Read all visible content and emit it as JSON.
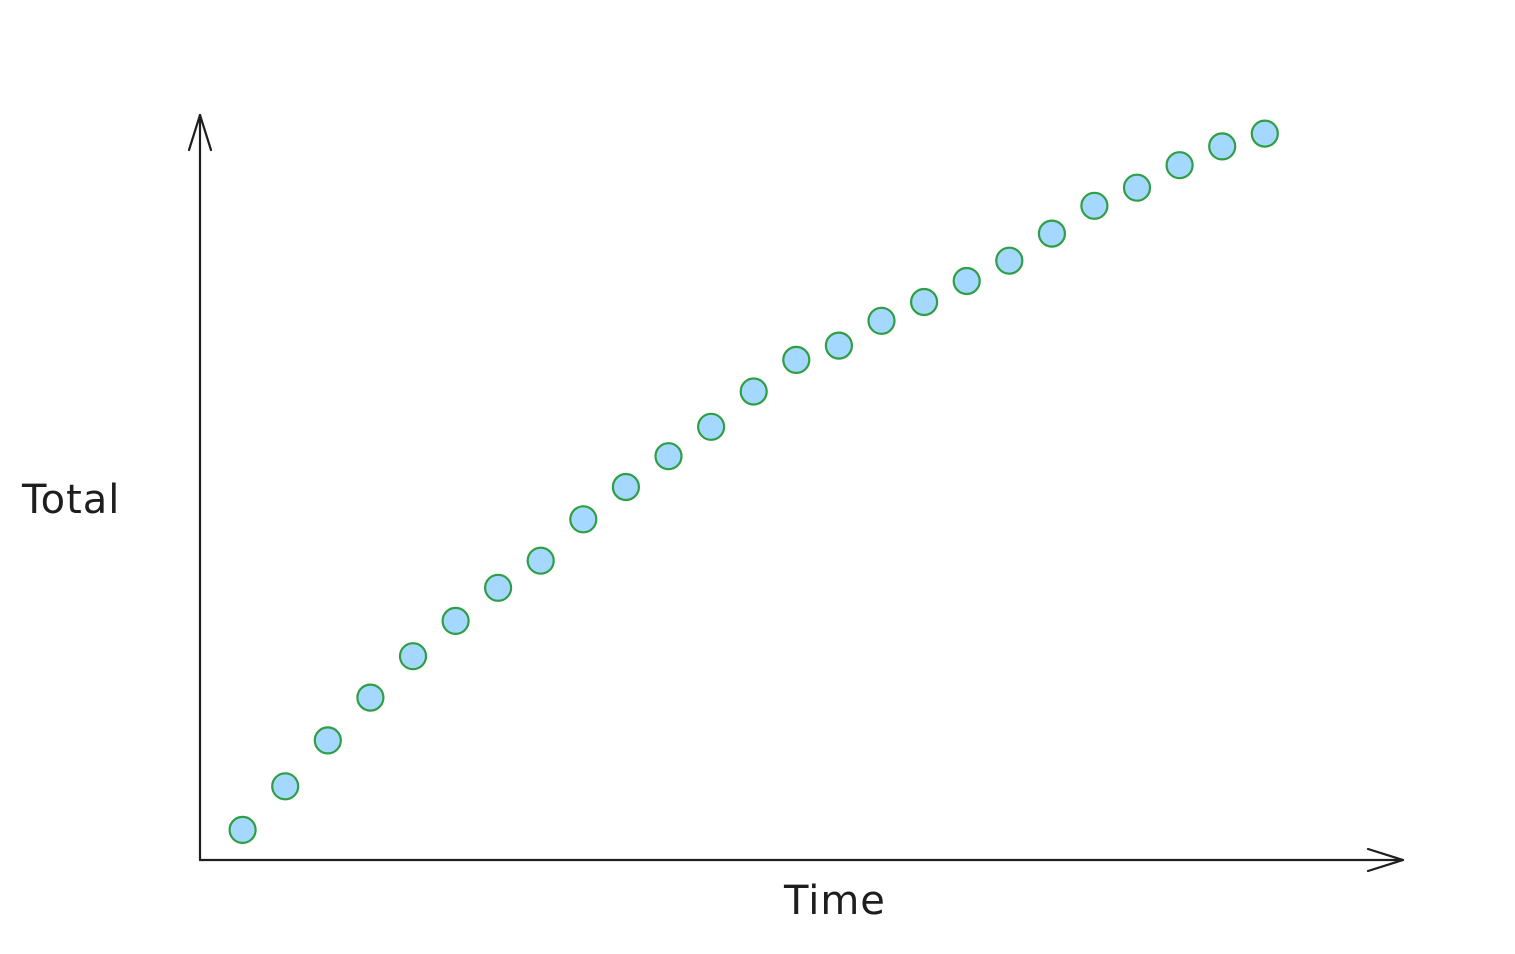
{
  "chart_data": {
    "type": "scatter",
    "title": "",
    "xlabel": "Time",
    "ylabel": "Total",
    "x": [
      1,
      2,
      3,
      4,
      5,
      6,
      7,
      8,
      9,
      10,
      11,
      12,
      13,
      14,
      15,
      16,
      17,
      18,
      19,
      20,
      21,
      22,
      23,
      24,
      25
    ],
    "y": [
      4.0,
      9.8,
      15.9,
      21.6,
      27.1,
      31.8,
      36.2,
      39.8,
      45.3,
      49.6,
      53.7,
      57.6,
      62.3,
      66.5,
      68.4,
      71.7,
      74.2,
      77.0,
      79.7,
      83.3,
      87.0,
      89.4,
      92.4,
      94.9,
      96.6
    ],
    "xlim": [
      0,
      27
    ],
    "ylim": [
      0,
      100
    ],
    "show_ticks": false,
    "grid": false,
    "legend": "none",
    "colors": {
      "point_fill": "#a5d8ff",
      "point_stroke": "#2f9e44",
      "axis": "#1e1e1e"
    }
  }
}
